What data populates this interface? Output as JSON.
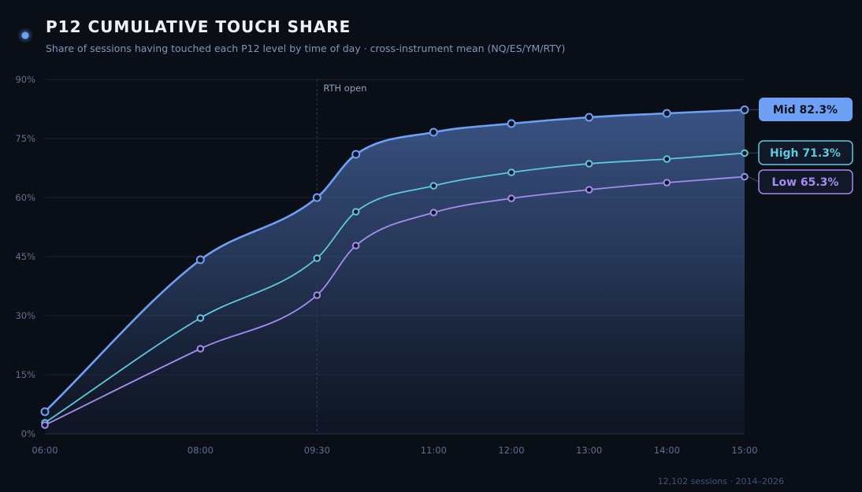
{
  "header": {
    "title": "P12 CUMULATIVE TOUCH SHARE",
    "subtitle": "Share of sessions having touched each P12 level by time of day · cross-instrument mean (NQ/ES/YM/RTY)"
  },
  "footer": "12,102 sessions · 2014–2026",
  "colors": {
    "background": "#0a0e17",
    "mid": "#6ea0f5",
    "high": "#5ec8e0",
    "low": "#a58cf0"
  },
  "chart_data": {
    "type": "line",
    "title": "P12 CUMULATIVE TOUCH SHARE",
    "xlabel": "",
    "ylabel": "",
    "x_hours": [
      6,
      8,
      9.5,
      10,
      11,
      12,
      13,
      14,
      15
    ],
    "x_ticks": [
      {
        "v": 6,
        "label": "06:00"
      },
      {
        "v": 8,
        "label": "08:00"
      },
      {
        "v": 9.5,
        "label": "09:30"
      },
      {
        "v": 11,
        "label": "11:00"
      },
      {
        "v": 12,
        "label": "12:00"
      },
      {
        "v": 13,
        "label": "13:00"
      },
      {
        "v": 14,
        "label": "14:00"
      },
      {
        "v": 15,
        "label": "15:00"
      }
    ],
    "y_ticks": [
      {
        "v": 0,
        "label": "0%"
      },
      {
        "v": 15,
        "label": "15%"
      },
      {
        "v": 30,
        "label": "30%"
      },
      {
        "v": 45,
        "label": "45%"
      },
      {
        "v": 60,
        "label": "60%"
      },
      {
        "v": 75,
        "label": "75%"
      },
      {
        "v": 90,
        "label": "90%"
      }
    ],
    "xlim": [
      6,
      15
    ],
    "ylim": [
      0,
      90
    ],
    "grid": true,
    "annotation": {
      "x": 9.5,
      "label": "RTH open"
    },
    "series": [
      {
        "name": "Mid",
        "key": "mid",
        "end_label": "Mid 82.3%",
        "values": [
          5.6,
          44.2,
          60.0,
          71.0,
          76.6,
          78.8,
          80.4,
          81.4,
          82.3
        ]
      },
      {
        "name": "High",
        "key": "high",
        "end_label": "High 71.3%",
        "values": [
          2.8,
          29.4,
          44.6,
          56.4,
          63.0,
          66.4,
          68.6,
          69.8,
          71.3
        ]
      },
      {
        "name": "Low",
        "key": "low",
        "end_label": "Low 65.3%",
        "values": [
          2.2,
          21.6,
          35.2,
          47.8,
          56.2,
          59.8,
          62.0,
          63.8,
          65.3
        ]
      }
    ]
  }
}
